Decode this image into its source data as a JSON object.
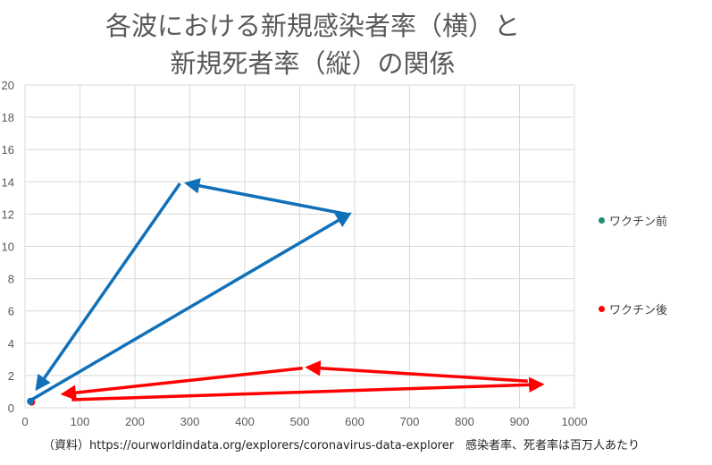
{
  "chart_data": {
    "type": "scatter",
    "title_line1": "各波における新規感染者率（横）と",
    "title_line2": "新規死者率（縦）の関係",
    "xlim": [
      0,
      1000
    ],
    "ylim": [
      0,
      20
    ],
    "xticks": [
      0,
      100,
      200,
      300,
      400,
      500,
      600,
      700,
      800,
      900,
      1000
    ],
    "yticks": [
      0,
      2,
      4,
      6,
      8,
      10,
      12,
      14,
      16,
      18,
      20
    ],
    "grid": true,
    "legend_placement": "right",
    "series": [
      {
        "name": "ワクチン前",
        "marker_color": "#1f8a70",
        "line_color": "#1070b8",
        "start": [
          10,
          0.4
        ],
        "arrows": [
          [
            [
              12,
              0.5
            ],
            [
              590,
              12
            ]
          ],
          [
            [
              585,
              12
            ],
            [
              295,
              13.9
            ]
          ],
          [
            [
              282,
              13.9
            ],
            [
              22,
              1.2
            ]
          ]
        ]
      },
      {
        "name": "ワクチン後",
        "marker_color": "#ff0000",
        "line_color": "#ff0000",
        "start": [
          12,
          0.35
        ],
        "arrows": [
          [
            [
              85,
              0.5
            ],
            [
              940,
              1.45
            ]
          ],
          [
            [
              915,
              1.65
            ],
            [
              515,
              2.5
            ]
          ],
          [
            [
              505,
              2.45
            ],
            [
              70,
              0.85
            ]
          ]
        ]
      }
    ]
  },
  "source": "（資料）https://ourworldindata.org/explorers/coronavirus-data-explorer　感染者率、死者率は百万人あたり"
}
